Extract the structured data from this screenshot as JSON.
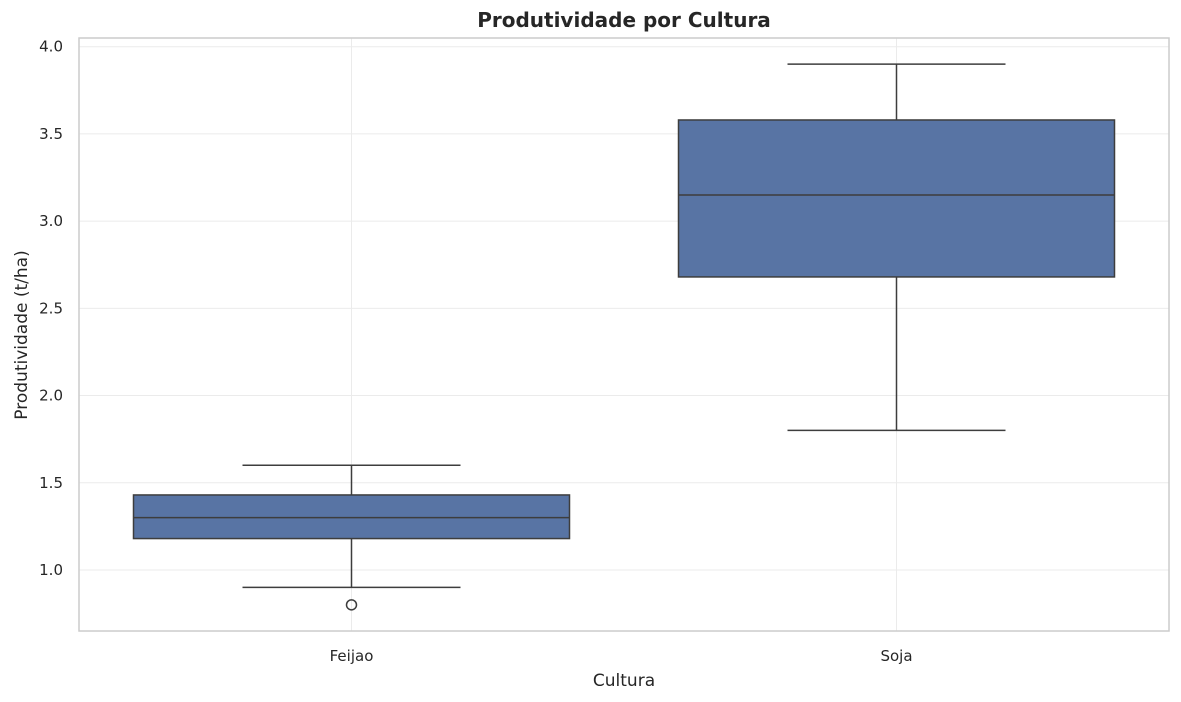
{
  "chart_data": {
    "type": "box",
    "title": "Produtividade por Cultura",
    "xlabel": "Cultura",
    "ylabel": "Produtividade (t/ha)",
    "ylim": [
      0.65,
      4.05
    ],
    "yticks": [
      "1.0",
      "1.5",
      "2.0",
      "2.5",
      "3.0",
      "3.5",
      "4.0"
    ],
    "grid": true,
    "categories": [
      "Feijao",
      "Soja"
    ],
    "boxes": [
      {
        "category": "Feijao",
        "whisker_low": 0.9,
        "q1": 1.18,
        "median": 1.3,
        "q3": 1.43,
        "whisker_high": 1.6,
        "outliers": [
          0.8
        ]
      },
      {
        "category": "Soja",
        "whisker_low": 1.8,
        "q1": 2.68,
        "median": 3.15,
        "q3": 3.58,
        "whisker_high": 3.9,
        "outliers": []
      }
    ],
    "colors": {
      "box_fill": "#5874a4",
      "line": "#3d3d3d",
      "grid": "#ebebeb",
      "frame": "#cccccc"
    }
  }
}
